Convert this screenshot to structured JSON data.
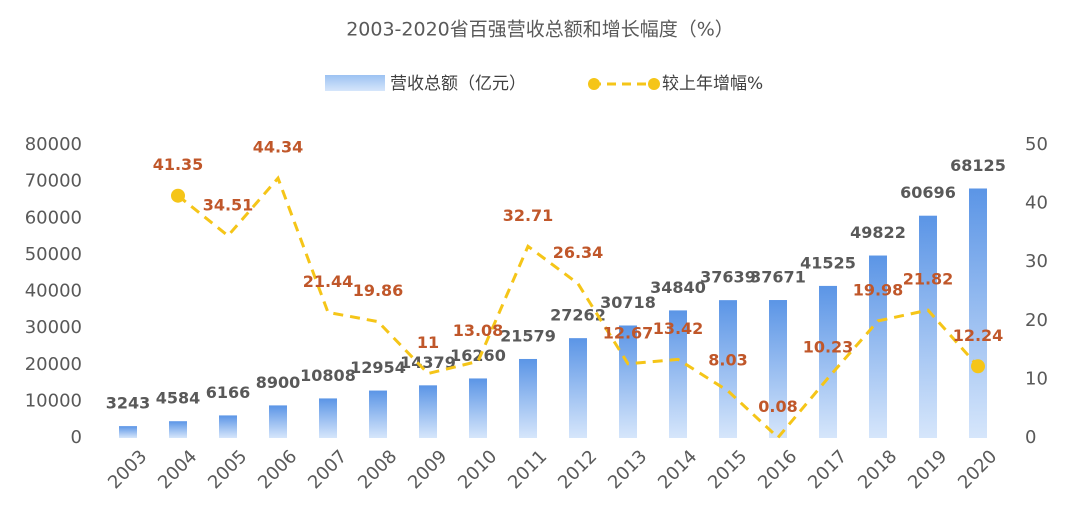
{
  "chart_data": {
    "type": "bar-line",
    "title": "2003-2020省百强营收总额和增长幅度（%）",
    "categories": [
      "2003",
      "2004",
      "2005",
      "2006",
      "2007",
      "2008",
      "2009",
      "2010",
      "2011",
      "2012",
      "2013",
      "2014",
      "2015",
      "2016",
      "2017",
      "2018",
      "2019",
      "2020"
    ],
    "series": [
      {
        "name": "营收总额（亿元）",
        "type": "bar",
        "color": "#6fa6ec",
        "values": [
          3243,
          4584,
          6166,
          8900,
          10808,
          12954,
          14379,
          16260,
          21579,
          27262,
          30718,
          34840,
          37639,
          37671,
          41525,
          49822,
          60696,
          68125
        ]
      },
      {
        "name": "较上年增幅%",
        "type": "line",
        "axis": "y2",
        "color": "#f5c518",
        "label_color": "#c0572a",
        "values": [
          null,
          41.35,
          34.51,
          44.34,
          21.44,
          19.86,
          11,
          13.08,
          32.71,
          26.34,
          12.67,
          13.42,
          8.03,
          0.08,
          10.23,
          19.98,
          21.82,
          12.24
        ]
      }
    ],
    "ylim": [
      0,
      80000
    ],
    "yticks": [
      0,
      10000,
      20000,
      30000,
      40000,
      50000,
      60000,
      70000,
      80000
    ],
    "y2lim": [
      0,
      50
    ],
    "y2ticks": [
      0,
      10,
      20,
      30,
      40,
      50
    ],
    "legend": "top"
  }
}
